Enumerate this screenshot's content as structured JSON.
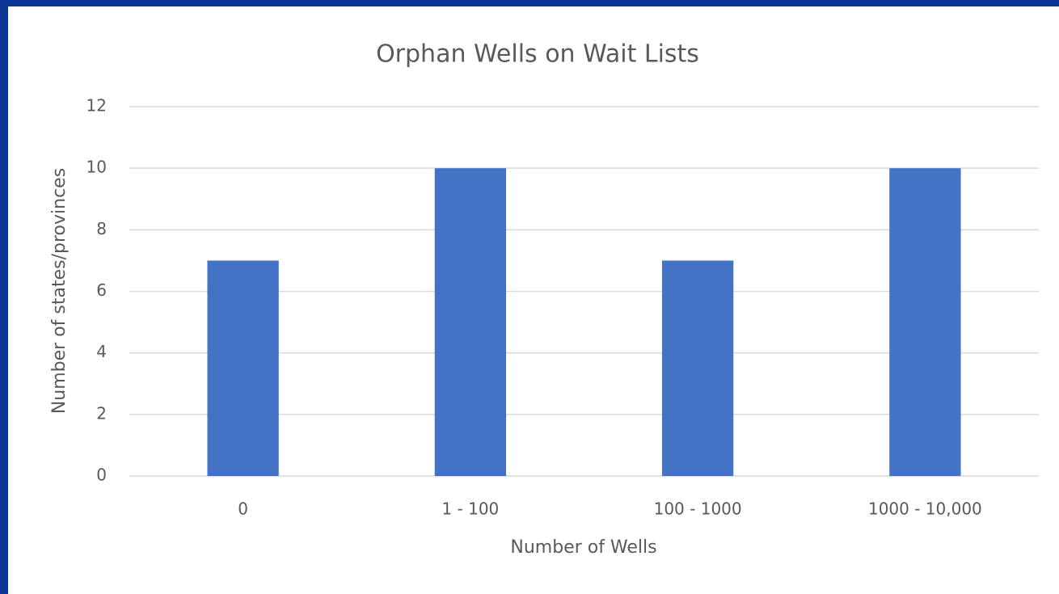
{
  "chart_data": {
    "type": "bar",
    "title": "Orphan Wells on Wait Lists",
    "x_label": "Number of Wells",
    "y_label": "Number of states/provinces",
    "categories": [
      "0",
      "1 - 100",
      "100 - 1000",
      "1000 - 10,000"
    ],
    "values": [
      7,
      10,
      7,
      10
    ],
    "color": "#4472c4",
    "ylim": [
      0,
      12
    ],
    "yticks": [
      0,
      2,
      4,
      6,
      8,
      10,
      12
    ],
    "grid": true
  }
}
